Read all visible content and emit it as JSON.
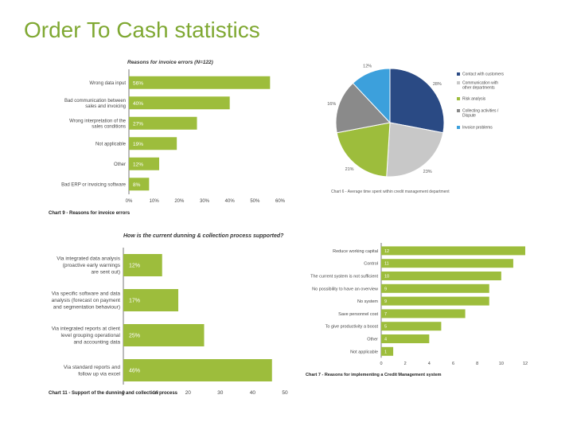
{
  "page_title": "Order To Cash statistics",
  "colors": {
    "title": "#7fa832",
    "bar": "#9dbd3c",
    "navy": "#2a4a84",
    "gray_light": "#c8c8c8",
    "gray_dark": "#8a8a8a",
    "blue": "#3ca0dc"
  },
  "chart_data": [
    {
      "type": "bar",
      "orientation": "horizontal",
      "title": "Reasons for invoice errors (N=122)",
      "caption": "Chart 9 - Reasons for invoice errors",
      "categories": [
        "Wrong data input",
        "Bad communication between sales and invoicing",
        "Wrong interpretation of the sales conditions",
        "Not applicable",
        "Other",
        "Bad ERP or invoicing software"
      ],
      "category_lines": [
        [
          "Wrong data input"
        ],
        [
          "Bad communication between",
          "sales and invoicing"
        ],
        [
          "Wrong interpretation of the",
          "sales conditions"
        ],
        [
          "Not applicable"
        ],
        [
          "Other"
        ],
        [
          "Bad ERP or invoicing software"
        ]
      ],
      "values": [
        56,
        40,
        27,
        19,
        12,
        8
      ],
      "value_labels": [
        "56%",
        "40%",
        "27%",
        "19%",
        "12%",
        "8%"
      ],
      "xlim": [
        0,
        60
      ],
      "ticks": [
        "0%",
        "10%",
        "20%",
        "30%",
        "40%",
        "50%",
        "60%"
      ]
    },
    {
      "type": "pie",
      "title": "",
      "caption": "Chart 6 - Average time spent within credit management department",
      "slices": [
        {
          "label": "Contact with customers",
          "value": 28,
          "value_label": "28%",
          "color": "#2a4a84"
        },
        {
          "label": "Communication with other departments",
          "value": 23,
          "value_label": "23%",
          "color": "#c8c8c8"
        },
        {
          "label": "Risk analysis",
          "value": 21,
          "value_label": "21%",
          "color": "#9dbd3c"
        },
        {
          "label": "Collecting activities / Dispute",
          "value": 16,
          "value_label": "16%",
          "color": "#8a8a8a"
        },
        {
          "label": "Invoice problems",
          "value": 12,
          "value_label": "12%",
          "color": "#3ca0dc"
        }
      ],
      "legend_lines": [
        [
          "Contact with customers"
        ],
        [
          "Communication with",
          "other departments"
        ],
        [
          "Risk analysis"
        ],
        [
          "Collecting activities /",
          "Dispute"
        ],
        [
          "Invoice problems"
        ]
      ]
    },
    {
      "type": "bar",
      "orientation": "horizontal",
      "title": "How is the current dunning & collection process supported?",
      "caption": "Chart 11 - Support of the dunning and collection process",
      "categories": [
        "Via integrated data analysis (proactive early warnings are sent out)",
        "Via specific software and data analysis (forecast on payment and segmentation behaviour)",
        "Via integrated reports at client level grouping operational and accounting data",
        "Via standard reports and follow up via excel"
      ],
      "category_lines": [
        [
          "Via integrated data analysis",
          "(proactive early warnings",
          "are sent out)"
        ],
        [
          "Via specific software and data",
          "analysis (forecast on payment",
          "and segmentation behaviour)"
        ],
        [
          "Via integrated reports at client",
          "level grouping operational",
          "and accounting data"
        ],
        [
          "Via standard reports and",
          "follow up via excel"
        ]
      ],
      "values": [
        12,
        17,
        25,
        46
      ],
      "value_labels": [
        "12%",
        "17%",
        "25%",
        "46%"
      ],
      "xlim": [
        0,
        50
      ],
      "ticks": [
        "0",
        "10",
        "20",
        "30",
        "40",
        "50"
      ]
    },
    {
      "type": "bar",
      "orientation": "horizontal",
      "title": "",
      "caption": "Chart 7 - Reasons for implementing a Credit Management system",
      "categories": [
        "Reduce working capital",
        "Control",
        "The current system is not sufficient",
        "No possibility to have an overview",
        "No system",
        "Save personnel cost",
        "To give productivity a boost",
        "Other",
        "Not applicable"
      ],
      "values": [
        12,
        11,
        10,
        9,
        9,
        7,
        5,
        4,
        1
      ],
      "value_labels": [
        "12",
        "11",
        "10",
        "9",
        "9",
        "7",
        "5",
        "4",
        "1"
      ],
      "xlim": [
        0,
        12
      ],
      "ticks": [
        "0",
        "2",
        "4",
        "6",
        "8",
        "10",
        "12"
      ]
    }
  ]
}
